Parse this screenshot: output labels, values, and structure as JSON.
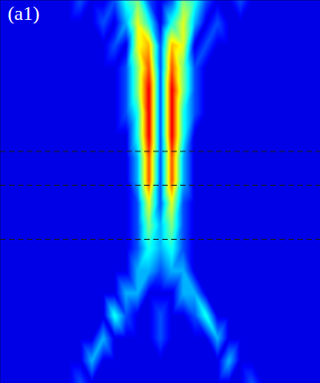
{
  "chart_data": {
    "type": "heatmap",
    "title": "(a1)",
    "tick_labels": false,
    "x": [
      0,
      1,
      2,
      3,
      4,
      5,
      6,
      7,
      8,
      9,
      10,
      11,
      12,
      13,
      14,
      15,
      16,
      17,
      18,
      19,
      20,
      21,
      22,
      23,
      24,
      25,
      26,
      27,
      28
    ],
    "y": [
      0,
      1,
      2,
      3,
      4,
      5,
      6,
      7,
      8,
      9,
      10,
      11,
      12,
      13,
      14,
      15,
      16,
      17
    ],
    "xlim": [
      0,
      28
    ],
    "ylim": [
      17,
      0
    ],
    "zlim": [
      0,
      10
    ],
    "dashed_lines": [
      6.7,
      8.2,
      10.6
    ],
    "z": [
      [
        1,
        1,
        1,
        1,
        1,
        1,
        1,
        2,
        1,
        1,
        2,
        4,
        5,
        2,
        1,
        2,
        5,
        4,
        2,
        1,
        1,
        2,
        1,
        1,
        1,
        1,
        1,
        1,
        1
      ],
      [
        1,
        1,
        1,
        1,
        1,
        1,
        1,
        1,
        1,
        2,
        1,
        3,
        6,
        4,
        1,
        4,
        6,
        3,
        1,
        2,
        1,
        1,
        1,
        1,
        1,
        1,
        1,
        1,
        1
      ],
      [
        1,
        1,
        1,
        1,
        1,
        1,
        1,
        1,
        1,
        1,
        2,
        1,
        6,
        7,
        2,
        7,
        6,
        1,
        2,
        1,
        1,
        1,
        1,
        1,
        1,
        1,
        1,
        1,
        1
      ],
      [
        1,
        1,
        1,
        1,
        1,
        1,
        1,
        1,
        1,
        1,
        1,
        2,
        5,
        8,
        2,
        8,
        5,
        2,
        1,
        1,
        1,
        1,
        1,
        1,
        1,
        1,
        1,
        1,
        1
      ],
      [
        1,
        1,
        1,
        1,
        1,
        1,
        1,
        1,
        1,
        1,
        1,
        2,
        5,
        9,
        2,
        9,
        5,
        2,
        1,
        1,
        1,
        1,
        1,
        1,
        1,
        1,
        1,
        1,
        1
      ],
      [
        1,
        1,
        1,
        1,
        1,
        1,
        1,
        1,
        1,
        1,
        1,
        2,
        4,
        9,
        2,
        9,
        4,
        2,
        1,
        1,
        1,
        1,
        1,
        1,
        1,
        1,
        1,
        1,
        1
      ],
      [
        1,
        1,
        1,
        1,
        1,
        1,
        1,
        1,
        1,
        1,
        1,
        1,
        4,
        9,
        2,
        9,
        4,
        1,
        1,
        1,
        1,
        1,
        1,
        1,
        1,
        1,
        1,
        1,
        1
      ],
      [
        1,
        1,
        1,
        1,
        1,
        1,
        1,
        1,
        1,
        1,
        1,
        1,
        3,
        8,
        2,
        8,
        3,
        1,
        1,
        1,
        1,
        1,
        1,
        1,
        1,
        1,
        1,
        1,
        1
      ],
      [
        1,
        1,
        1,
        1,
        1,
        1,
        1,
        1,
        1,
        1,
        1,
        1,
        3,
        8,
        2,
        8,
        3,
        1,
        1,
        1,
        1,
        1,
        1,
        1,
        1,
        1,
        1,
        1,
        1
      ],
      [
        1,
        1,
        1,
        1,
        1,
        1,
        1,
        1,
        1,
        1,
        1,
        1,
        2,
        6,
        2,
        6,
        2,
        1,
        1,
        1,
        1,
        1,
        1,
        1,
        1,
        1,
        1,
        1,
        1
      ],
      [
        1,
        1,
        1,
        1,
        1,
        1,
        1,
        1,
        1,
        1,
        1,
        1,
        2,
        5,
        3,
        5,
        2,
        1,
        1,
        1,
        1,
        1,
        1,
        1,
        1,
        1,
        1,
        1,
        1
      ],
      [
        1,
        1,
        1,
        1,
        1,
        1,
        1,
        1,
        1,
        1,
        1,
        1,
        2,
        4,
        3,
        4,
        2,
        1,
        1,
        1,
        1,
        1,
        1,
        1,
        1,
        1,
        1,
        1,
        1
      ],
      [
        1,
        1,
        1,
        1,
        1,
        1,
        1,
        1,
        1,
        1,
        1,
        1,
        3,
        3,
        2,
        3,
        3,
        1,
        1,
        1,
        1,
        1,
        1,
        1,
        1,
        1,
        1,
        1,
        1
      ],
      [
        1,
        1,
        1,
        1,
        1,
        1,
        1,
        1,
        1,
        1,
        1,
        3,
        3,
        1,
        1,
        1,
        3,
        3,
        1,
        1,
        1,
        1,
        1,
        1,
        1,
        1,
        1,
        1,
        1
      ],
      [
        1,
        1,
        1,
        1,
        1,
        1,
        1,
        1,
        1,
        1,
        4,
        2,
        1,
        1,
        2,
        1,
        1,
        2,
        4,
        1,
        1,
        1,
        1,
        1,
        1,
        1,
        1,
        1,
        1
      ],
      [
        1,
        1,
        1,
        1,
        1,
        1,
        1,
        1,
        1,
        3,
        1,
        1,
        1,
        1,
        2,
        1,
        1,
        1,
        1,
        3,
        1,
        1,
        1,
        1,
        1,
        1,
        1,
        1,
        1
      ],
      [
        1,
        1,
        1,
        1,
        1,
        1,
        1,
        1,
        3,
        1,
        1,
        1,
        1,
        1,
        1,
        1,
        1,
        1,
        1,
        1,
        3,
        1,
        1,
        1,
        1,
        1,
        1,
        1,
        1
      ],
      [
        1,
        1,
        1,
        1,
        1,
        1,
        1,
        2,
        1,
        1,
        1,
        1,
        1,
        1,
        1,
        1,
        1,
        1,
        1,
        1,
        1,
        1,
        2,
        1,
        1,
        1,
        1,
        1,
        1
      ]
    ]
  }
}
